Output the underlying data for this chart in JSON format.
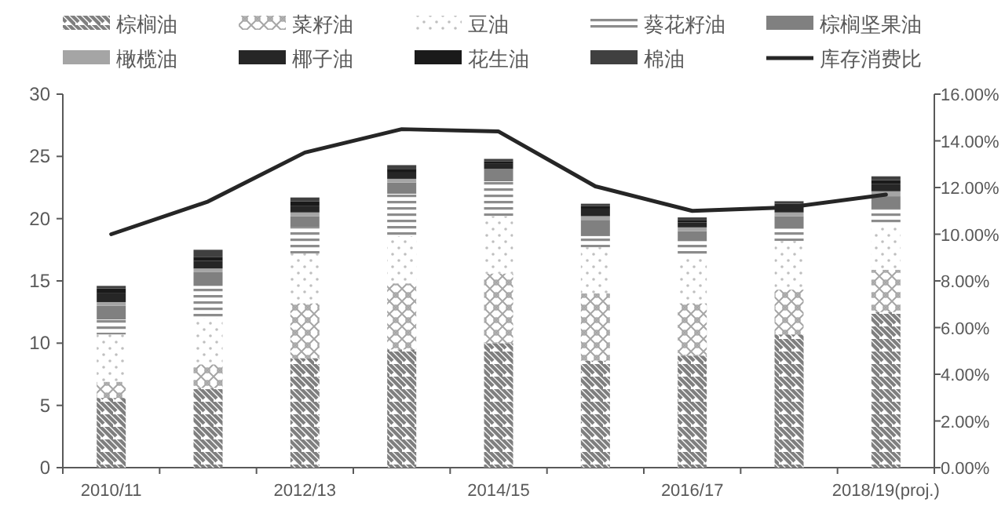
{
  "chart_data": {
    "type": "bar",
    "stacked": true,
    "legend": "top",
    "grid": false,
    "categories": [
      "2010/11",
      null,
      "2012/13",
      null,
      "2014/15",
      null,
      "2016/17",
      null,
      "2018/19(proj.)"
    ],
    "ylim": [
      0,
      30
    ],
    "yticks": [
      0,
      5,
      10,
      15,
      20,
      25,
      30
    ],
    "y2lim": [
      0,
      16
    ],
    "y2ticks": [
      {
        "value": 0,
        "label": "0.00%"
      },
      {
        "value": 2,
        "label": "2.00%"
      },
      {
        "value": 4,
        "label": "4.00%"
      },
      {
        "value": 6,
        "label": "6.00%"
      },
      {
        "value": 8,
        "label": "8.00%"
      },
      {
        "value": 10,
        "label": "10.00%"
      },
      {
        "value": 12,
        "label": "12.00%"
      },
      {
        "value": 14,
        "label": "14.00%"
      },
      {
        "value": 16,
        "label": "16.00%"
      }
    ],
    "series": [
      {
        "name": "棕榈油",
        "color": "#7f7f7f",
        "values": [
          5.6,
          6.4,
          8.8,
          9.5,
          10.0,
          8.6,
          9.0,
          10.7,
          12.5
        ]
      },
      {
        "name": "菜籽油",
        "color": "#a6a6a6",
        "values": [
          1.3,
          1.9,
          4.4,
          5.3,
          5.6,
          5.4,
          4.2,
          3.6,
          3.4
        ]
      },
      {
        "name": "豆油",
        "color": "#bfbfbf",
        "values": [
          3.8,
          3.7,
          4.0,
          3.8,
          4.6,
          3.7,
          3.8,
          3.9,
          3.6
        ]
      },
      {
        "name": "葵花籽油",
        "color": "#8c8c8c",
        "values": [
          1.2,
          2.6,
          2.1,
          3.4,
          2.8,
          0.9,
          1.2,
          1.0,
          1.3
        ]
      },
      {
        "name": "棕榈坚果油",
        "color": "#808080",
        "values": [
          1.1,
          1.1,
          0.9,
          0.9,
          1.0,
          1.3,
          0.8,
          1.0,
          1.0
        ]
      },
      {
        "name": "橄榄油",
        "color": "#a5a5a5",
        "values": [
          0.3,
          0.3,
          0.3,
          0.3,
          null,
          0.3,
          0.3,
          0.3,
          0.4
        ]
      },
      {
        "name": "椰子油",
        "color": "#262626",
        "values": [
          0.7,
          0.6,
          0.5,
          0.5,
          0.4,
          0.6,
          0.4,
          0.7,
          0.6
        ]
      },
      {
        "name": "花生油",
        "color": "#1a1a1a",
        "values": [
          0.4,
          0.3,
          0.4,
          0.3,
          0.2,
          0.2,
          0.2,
          null,
          0.3
        ]
      },
      {
        "name": "棉油",
        "color": "#404040",
        "values": [
          0.2,
          0.6,
          0.3,
          0.3,
          0.2,
          0.2,
          0.2,
          0.2,
          0.3
        ]
      },
      {
        "name": "库存消费比",
        "type": "line",
        "axis": "y2",
        "color": "#262626",
        "values": [
          10.0,
          11.4,
          13.5,
          14.5,
          14.4,
          12.05,
          11.0,
          11.15,
          11.7
        ]
      }
    ]
  }
}
